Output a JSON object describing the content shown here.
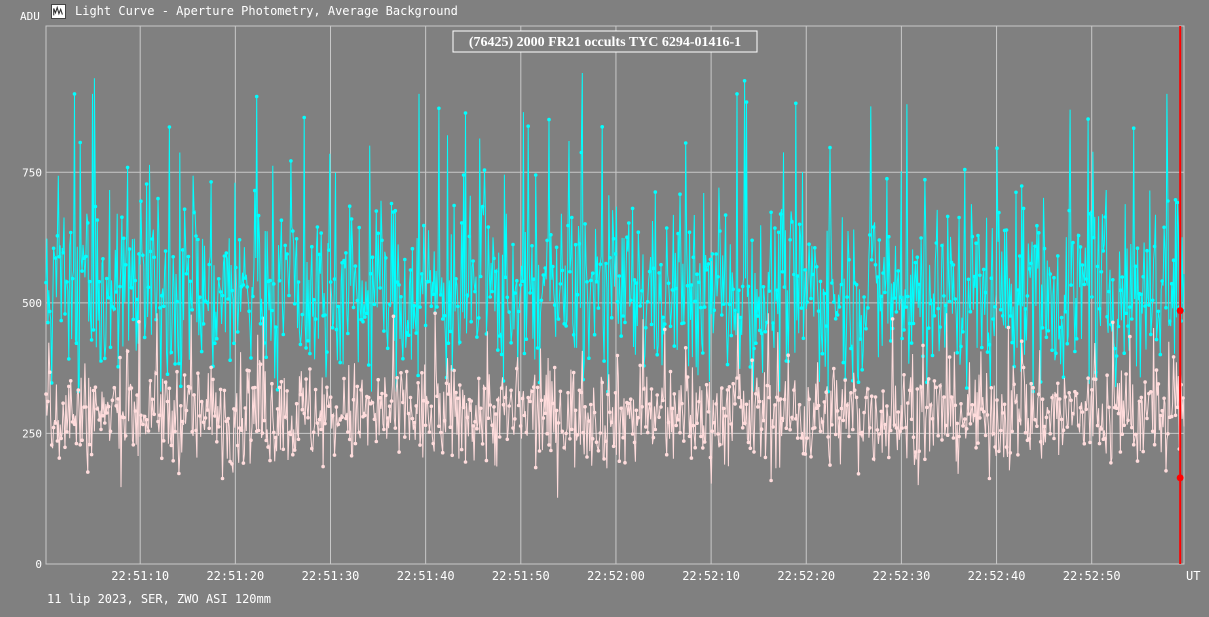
{
  "window": {
    "title": "Light Curve - Aperture Photometry, Average Background",
    "icon": "light-curve-app-icon"
  },
  "footer": {
    "info": "11 lip 2023, SER, ZWO ASI 120mm"
  },
  "colors": {
    "background": "#808080",
    "grid": "#c8c8c8",
    "target_series": "#00ffff",
    "comparison_series": "#ffdcdc",
    "cursor": "#ff0000",
    "title_box_bg": "#808080",
    "title_box_border": "#ffffff"
  },
  "chart_data": {
    "type": "line",
    "title": "(76425) 2000 FR21 occults TYC 6294-01416-1",
    "ylabel": "ADU",
    "xlabel": "UT",
    "ylim": [
      0,
      1030
    ],
    "yticks": [
      0,
      250,
      500,
      750
    ],
    "xlim": [
      "22:51:00.1",
      "22:52:59.7"
    ],
    "xticks": [
      "22:51:10",
      "22:51:20",
      "22:51:30",
      "22:51:40",
      "22:51:50",
      "22:52:00",
      "22:52:10",
      "22:52:20",
      "22:52:30",
      "22:52:40",
      "22:52:50"
    ],
    "grid": true,
    "cursor_time": "22:52:59.3",
    "cursor_values": {
      "target": 485,
      "comparison": 165
    },
    "series": [
      {
        "role": "target",
        "color": "#00ffff",
        "style": "line-with-dots",
        "points": 1200,
        "approx_mean": 520,
        "approx_spread": [
          330,
          900
        ],
        "notable_peaks": [
          930,
          895,
          900,
          940,
          925,
          880,
          870
        ]
      },
      {
        "role": "comparison",
        "color": "#ffdcdc",
        "style": "line-with-dots",
        "points": 1200,
        "approx_mean": 285,
        "approx_spread": [
          120,
          480
        ]
      }
    ]
  }
}
